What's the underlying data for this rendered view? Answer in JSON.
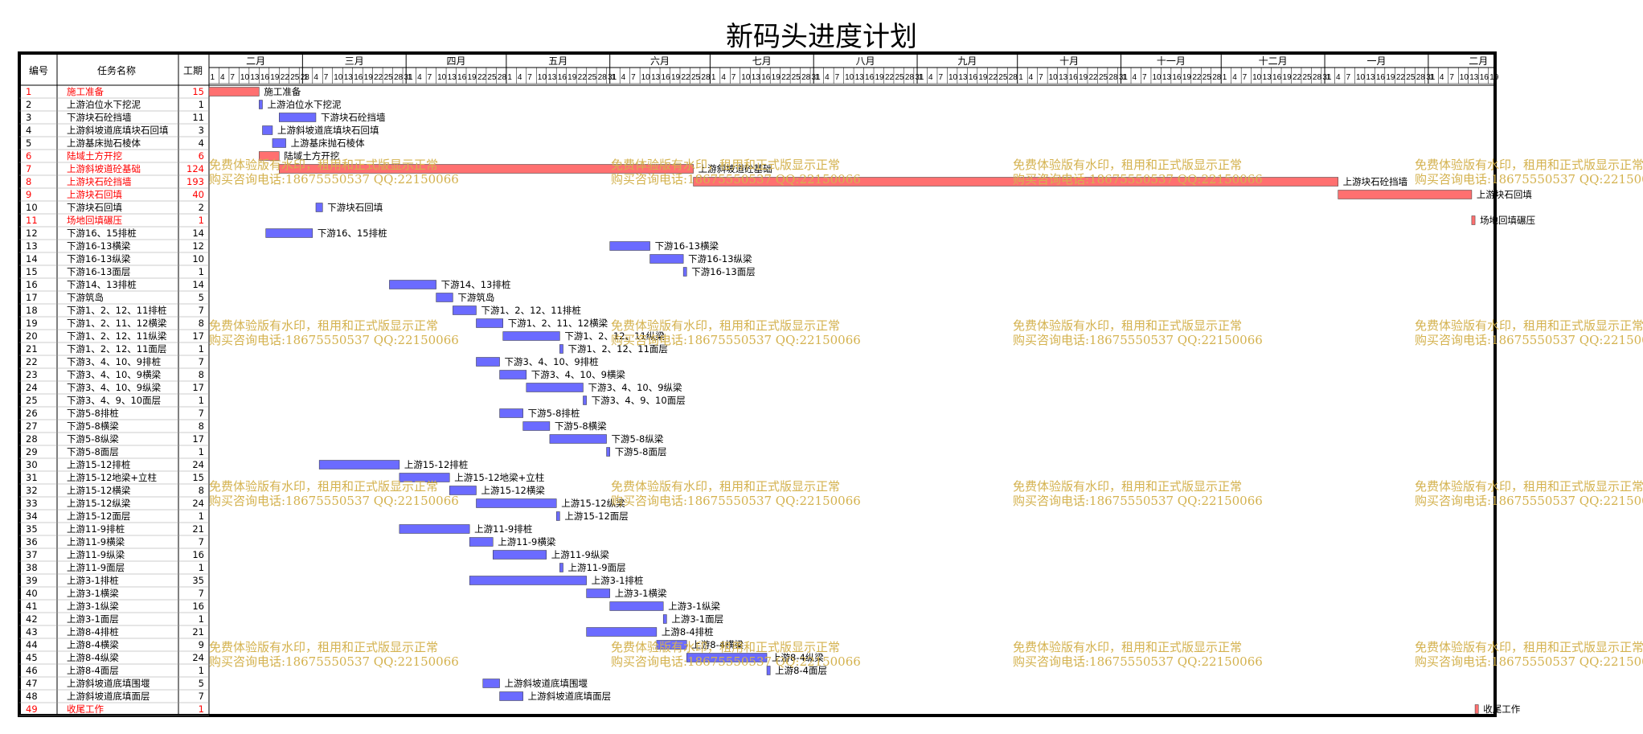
{
  "title": "新码头进度计划",
  "headers": {
    "num": "编号",
    "name": "任务名称",
    "dur": "工期"
  },
  "months": [
    "二月",
    "三月",
    "四月",
    "五月",
    "六月",
    "七月",
    "八月",
    "九月",
    "十月",
    "十一月",
    "十二月",
    "一月",
    "二月"
  ],
  "watermark": {
    "line1": "免费体验版有水印，租用和正式版显示正常",
    "line2": "购买咨询电话:18675550537 QQ:22150066"
  },
  "colors": {
    "bar": "#6b6bff",
    "critical_bar": "#ff7070",
    "critical_text": "#ff0000",
    "watermark": "#d4b24f"
  },
  "chart_data": {
    "type": "gantt",
    "title": "新码头进度计划",
    "x_unit": "day",
    "timeline_days": 385,
    "tick_label_step_days": 3,
    "month_day_counts": [
      28,
      31,
      30,
      31,
      30,
      31,
      31,
      30,
      31,
      30,
      31,
      31,
      30
    ],
    "tasks": [
      {
        "id": "1",
        "name": "施工准备",
        "duration": 15,
        "start_day": 0,
        "critical": true
      },
      {
        "id": "2",
        "name": "上游泊位水下挖泥",
        "duration": 1,
        "start_day": 15,
        "critical": false
      },
      {
        "id": "3",
        "name": "下游块石砼挡墙",
        "duration": 11,
        "start_day": 21,
        "critical": false
      },
      {
        "id": "4",
        "name": "上游斜坡道底填块石回填",
        "duration": 3,
        "start_day": 16,
        "critical": false
      },
      {
        "id": "5",
        "name": "上游基床抛石棱体",
        "duration": 4,
        "start_day": 19,
        "critical": false
      },
      {
        "id": "6",
        "name": "陆域土方开挖",
        "duration": 6,
        "start_day": 15,
        "critical": true
      },
      {
        "id": "7",
        "name": "上游斜坡道砼基础",
        "duration": 124,
        "start_day": 21,
        "critical": true
      },
      {
        "id": "8",
        "name": "上游块石砼挡墙",
        "duration": 193,
        "start_day": 145,
        "critical": true
      },
      {
        "id": "9",
        "name": "上游块石回填",
        "duration": 40,
        "start_day": 338,
        "critical": true
      },
      {
        "id": "10",
        "name": "下游块石回填",
        "duration": 2,
        "start_day": 32,
        "critical": false
      },
      {
        "id": "11",
        "name": "场地回填碾压",
        "duration": 1,
        "start_day": 378,
        "critical": true
      },
      {
        "id": "12",
        "name": "下游16、15排桩",
        "duration": 14,
        "start_day": 17,
        "critical": false
      },
      {
        "id": "13",
        "name": "下游16-13横梁",
        "duration": 12,
        "start_day": 120,
        "critical": false
      },
      {
        "id": "14",
        "name": "下游16-13纵梁",
        "duration": 10,
        "start_day": 132,
        "critical": false
      },
      {
        "id": "15",
        "name": "下游16-13面层",
        "duration": 1,
        "start_day": 142,
        "critical": false
      },
      {
        "id": "16",
        "name": "下游14、13排桩",
        "duration": 14,
        "start_day": 54,
        "critical": false
      },
      {
        "id": "17",
        "name": "下游筑岛",
        "duration": 5,
        "start_day": 68,
        "critical": false
      },
      {
        "id": "18",
        "name": "下游1、2、12、11排桩",
        "duration": 7,
        "start_day": 73,
        "critical": false
      },
      {
        "id": "19",
        "name": "下游1、2、11、12横梁",
        "duration": 8,
        "start_day": 80,
        "critical": false
      },
      {
        "id": "20",
        "name": "下游1、2、12、11纵梁",
        "duration": 17,
        "start_day": 88,
        "critical": false
      },
      {
        "id": "21",
        "name": "下游1、2、12、11面层",
        "duration": 1,
        "start_day": 105,
        "critical": false
      },
      {
        "id": "22",
        "name": "下游3、4、10、9排桩",
        "duration": 7,
        "start_day": 80,
        "critical": false
      },
      {
        "id": "23",
        "name": "下游3、4、10、9横梁",
        "duration": 8,
        "start_day": 87,
        "critical": false
      },
      {
        "id": "24",
        "name": "下游3、4、10、9纵梁",
        "duration": 17,
        "start_day": 95,
        "critical": false
      },
      {
        "id": "25",
        "name": "下游3、4、9、10面层",
        "duration": 1,
        "start_day": 112,
        "critical": false
      },
      {
        "id": "26",
        "name": "下游5-8排桩",
        "duration": 7,
        "start_day": 87,
        "critical": false
      },
      {
        "id": "27",
        "name": "下游5-8横梁",
        "duration": 8,
        "start_day": 94,
        "critical": false
      },
      {
        "id": "28",
        "name": "下游5-8纵梁",
        "duration": 17,
        "start_day": 102,
        "critical": false
      },
      {
        "id": "29",
        "name": "下游5-8面层",
        "duration": 1,
        "start_day": 119,
        "critical": false
      },
      {
        "id": "30",
        "name": "上游15-12排桩",
        "duration": 24,
        "start_day": 33,
        "critical": false
      },
      {
        "id": "31",
        "name": "上游15-12地梁+立柱",
        "duration": 15,
        "start_day": 57,
        "critical": false
      },
      {
        "id": "32",
        "name": "上游15-12横梁",
        "duration": 8,
        "start_day": 72,
        "critical": false
      },
      {
        "id": "33",
        "name": "上游15-12纵梁",
        "duration": 24,
        "start_day": 80,
        "critical": false
      },
      {
        "id": "34",
        "name": "上游15-12面层",
        "duration": 1,
        "start_day": 104,
        "critical": false
      },
      {
        "id": "35",
        "name": "上游11-9排桩",
        "duration": 21,
        "start_day": 57,
        "critical": false
      },
      {
        "id": "36",
        "name": "上游11-9横梁",
        "duration": 7,
        "start_day": 78,
        "critical": false
      },
      {
        "id": "37",
        "name": "上游11-9纵梁",
        "duration": 16,
        "start_day": 85,
        "critical": false
      },
      {
        "id": "38",
        "name": "上游11-9面层",
        "duration": 1,
        "start_day": 105,
        "critical": false
      },
      {
        "id": "39",
        "name": "上游3-1排桩",
        "duration": 35,
        "start_day": 78,
        "critical": false
      },
      {
        "id": "40",
        "name": "上游3-1横梁",
        "duration": 7,
        "start_day": 113,
        "critical": false
      },
      {
        "id": "41",
        "name": "上游3-1纵梁",
        "duration": 16,
        "start_day": 120,
        "critical": false
      },
      {
        "id": "42",
        "name": "上游3-1面层",
        "duration": 1,
        "start_day": 136,
        "critical": false
      },
      {
        "id": "43",
        "name": "上游8-4排桩",
        "duration": 21,
        "start_day": 113,
        "critical": false
      },
      {
        "id": "44",
        "name": "上游8-4横梁",
        "duration": 9,
        "start_day": 134,
        "critical": false
      },
      {
        "id": "45",
        "name": "上游8-4纵梁",
        "duration": 24,
        "start_day": 143,
        "critical": false
      },
      {
        "id": "46",
        "name": "上游8-4面层",
        "duration": 1,
        "start_day": 167,
        "critical": false
      },
      {
        "id": "47",
        "name": "上游斜坡道底填围堰",
        "duration": 5,
        "start_day": 82,
        "critical": false
      },
      {
        "id": "48",
        "name": "上游斜坡道底填面层",
        "duration": 7,
        "start_day": 87,
        "critical": false
      },
      {
        "id": "49",
        "name": "收尾工作",
        "duration": 1,
        "start_day": 379,
        "critical": true
      }
    ]
  }
}
